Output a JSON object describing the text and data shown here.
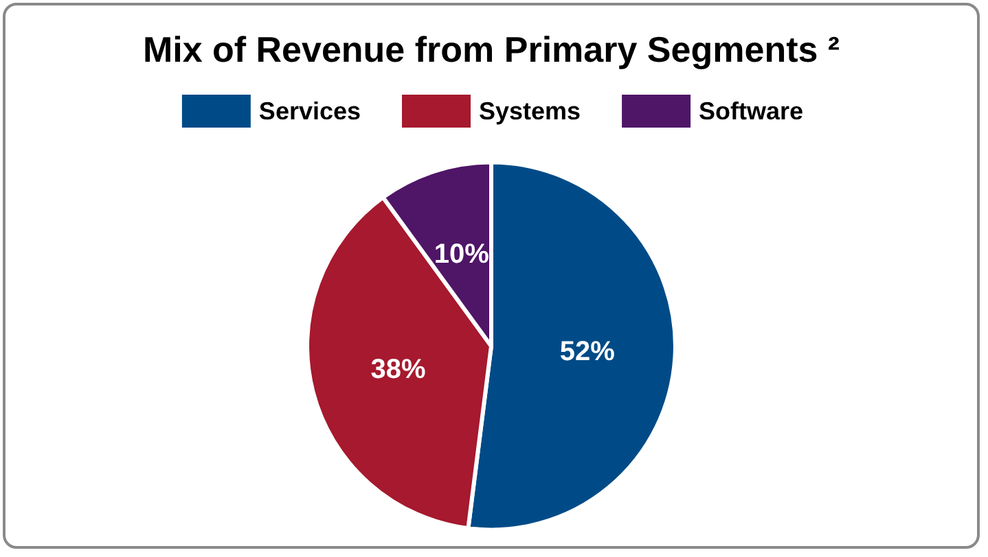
{
  "chart_data": {
    "type": "pie",
    "title": "Mix of Revenue from Primary Segments ²",
    "categories": [
      "Services",
      "Systems",
      "Software"
    ],
    "values": [
      52,
      38,
      10
    ],
    "colors": [
      "#004b87",
      "#a6192e",
      "#4f1567"
    ],
    "value_labels": [
      "52%",
      "38%",
      "10%"
    ],
    "legend": "top"
  }
}
